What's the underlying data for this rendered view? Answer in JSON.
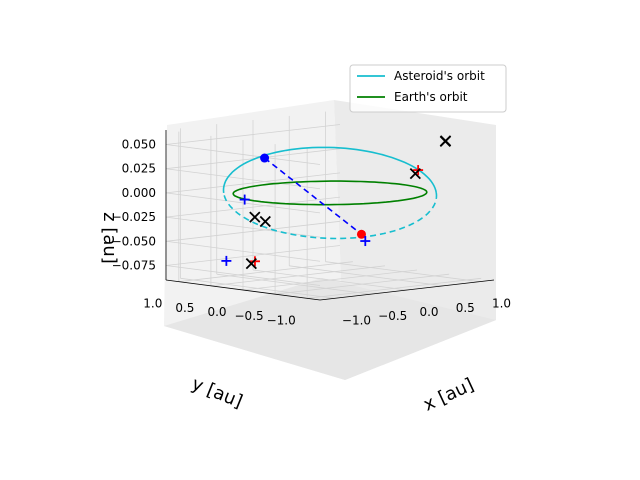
{
  "chart_data": {
    "type": "3d-line",
    "xlabel": "x [au]",
    "ylabel": "y [au]",
    "zlabel": "z [au]",
    "x_ticks": [
      "−1.0",
      "−0.5",
      "0.0",
      "0.5",
      "1.0"
    ],
    "y_ticks": [
      "−1.0",
      "−0.5",
      "0.0",
      "0.5",
      "1.0"
    ],
    "z_ticks": [
      "−0.075",
      "−0.050",
      "−0.025",
      "0.000",
      "0.025",
      "0.050"
    ],
    "xlim": [
      -1.2,
      1.2
    ],
    "ylim": [
      -1.2,
      1.2
    ],
    "zlim": [
      -0.09,
      0.065
    ],
    "grid": true,
    "legend_position": "top-right",
    "colors": {
      "asteroid": "#17becf",
      "earth": "#008000",
      "blue_marker": "#0000ff",
      "red_marker": "#ff0000",
      "black_marker": "#000000"
    },
    "series": [
      {
        "name": "Asteroid's orbit",
        "kind": "ellipse-orbit",
        "a": 1.1,
        "e": 0.0,
        "inclination_deg": 3.5,
        "node_longitude_deg": 135,
        "color": "#17becf"
      },
      {
        "name": "Earth's orbit",
        "kind": "circle-orbit",
        "radius": 1.0,
        "color": "#008000"
      }
    ],
    "markers": {
      "blue_dots": [
        {
          "x": -0.15,
          "y": 0.85,
          "z": 0.03
        }
      ],
      "red_dots": [
        {
          "x": 0.08,
          "y": -0.4,
          "z": -0.04
        }
      ],
      "blue_plus": [
        {
          "x": -1.0,
          "y": 0.2,
          "z": 0.0
        },
        {
          "x": 0.0,
          "y": -0.55,
          "z": -0.045
        },
        {
          "x": -0.5,
          "y": 1.05,
          "z": -0.075
        }
      ],
      "red_plus": [
        {
          "x": 0.95,
          "y": -0.3,
          "z": 0.018
        },
        {
          "x": -0.15,
          "y": 1.0,
          "z": -0.078
        }
      ],
      "black_x": [
        {
          "x": 0.75,
          "y": -0.95,
          "z": 0.055
        },
        {
          "x": 0.78,
          "y": -0.92,
          "z": 0.055
        },
        {
          "x": 1.0,
          "y": -0.2,
          "z": 0.013
        },
        {
          "x": -0.55,
          "y": 0.55,
          "z": -0.025
        },
        {
          "x": -0.45,
          "y": 0.5,
          "z": -0.03
        },
        {
          "x": -0.2,
          "y": 1.0,
          "z": -0.08
        }
      ]
    }
  }
}
